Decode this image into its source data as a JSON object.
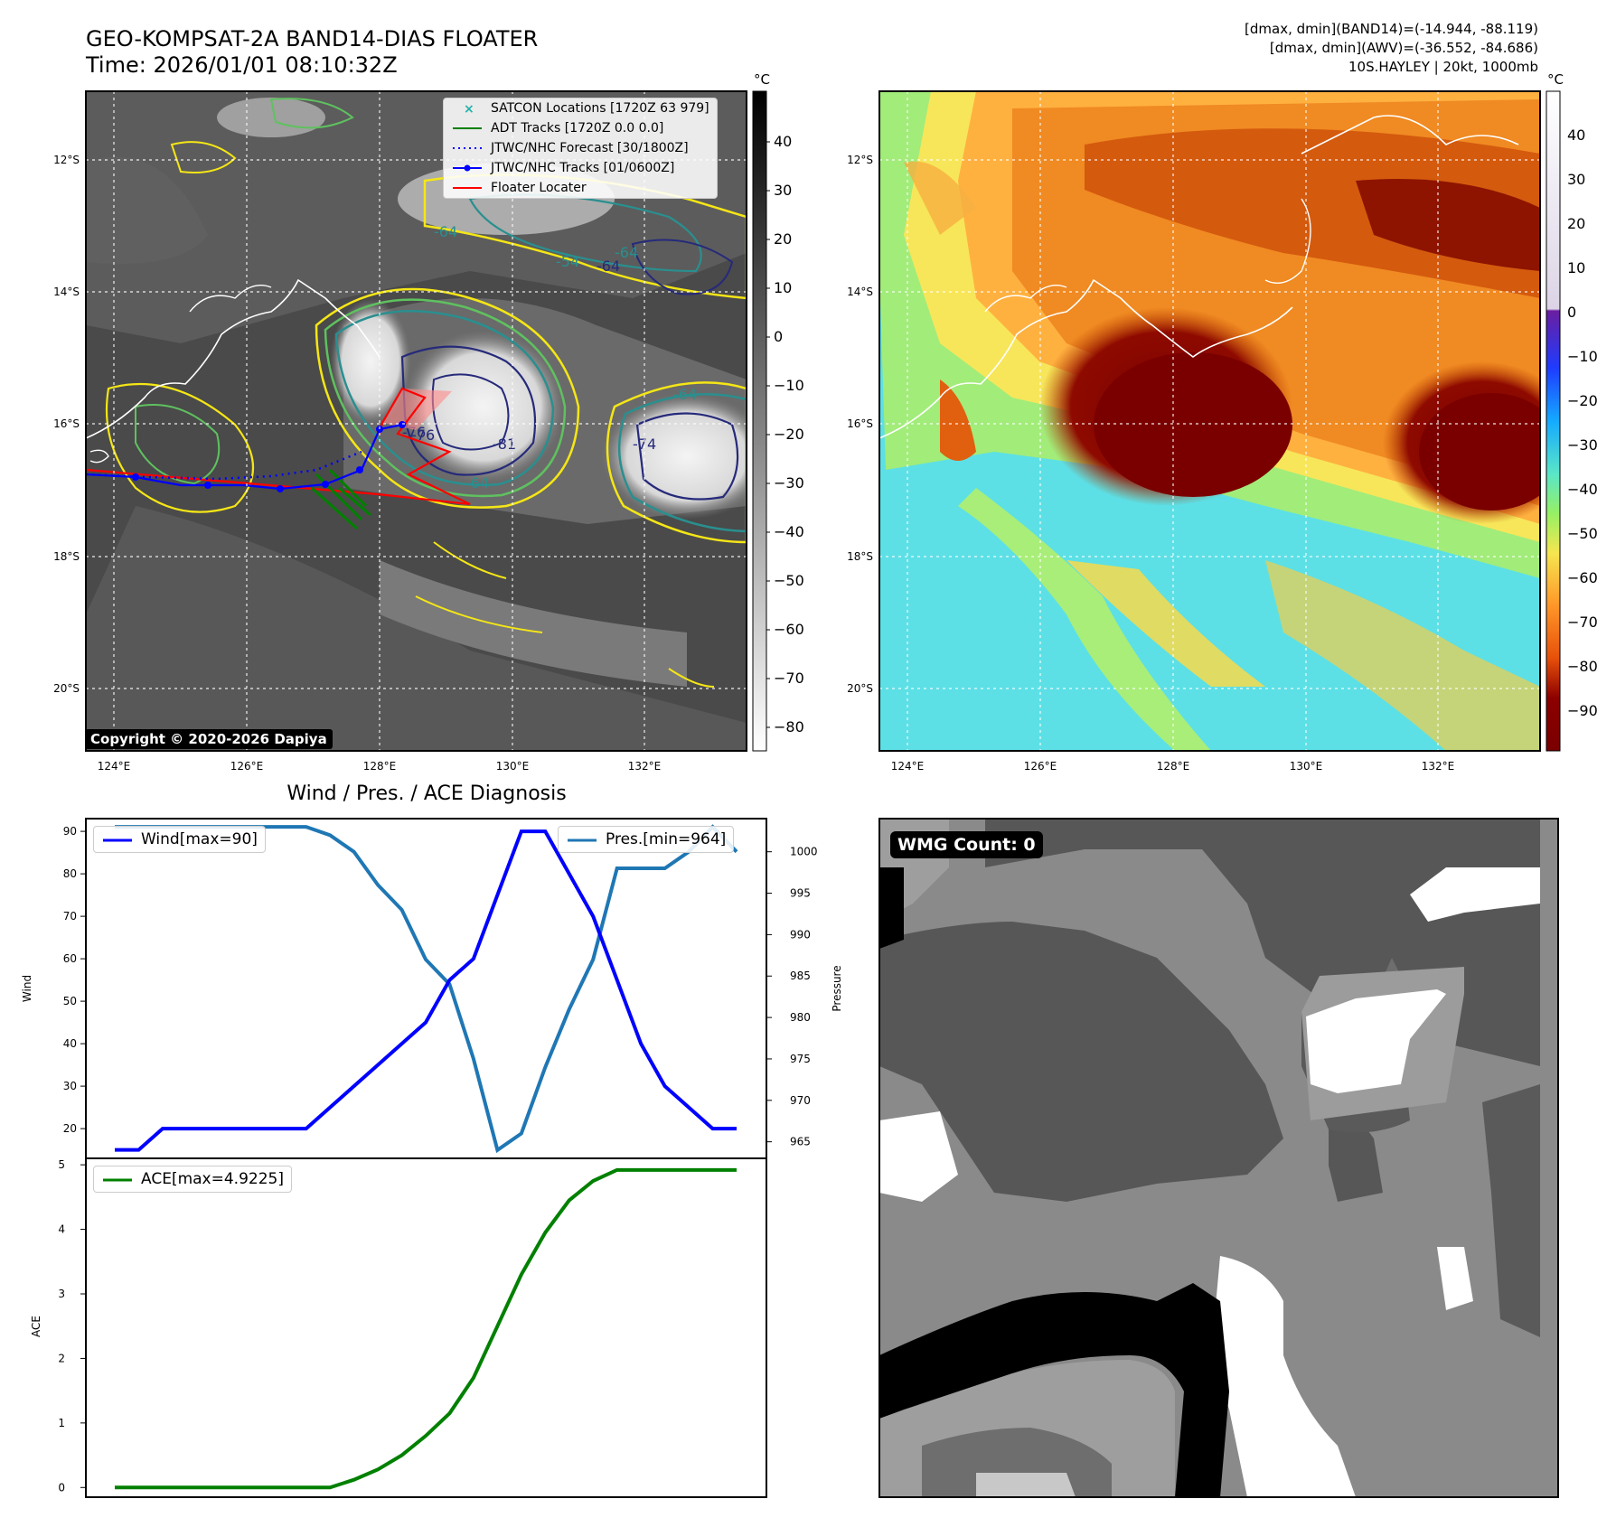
{
  "header": {
    "title_line1": "GEO-KOMPSAT-2A BAND14-DIAS FLOATER",
    "title_line2": "Time: 2026/01/01 08:10:32Z",
    "info_line1": "[dmax, dmin](BAND14)=(-14.944, -88.119)",
    "info_line2": "[dmax, dmin](AWV)=(-36.552, -84.686)",
    "info_line3": "10S.HAYLEY | 20kt, 1000mb"
  },
  "map": {
    "lat_labels": [
      "12°S",
      "14°S",
      "16°S",
      "18°S",
      "20°S"
    ],
    "lon_labels": [
      "124°E",
      "126°E",
      "128°E",
      "130°E",
      "132°E"
    ],
    "copyright": "Copyright © 2020-2026 Dapiya",
    "legend": [
      {
        "label": "SATCON Locations [1720Z 63 979]",
        "color": "#20b2aa",
        "style": "x"
      },
      {
        "label": "ADT Tracks [1720Z 0.0 0.0]",
        "color": "#008000",
        "style": "solid"
      },
      {
        "label": "JTWC/NHC Forecast [30/1800Z]",
        "color": "#0000ff",
        "style": "dotted"
      },
      {
        "label": "JTWC/NHC Tracks [01/0600Z]",
        "color": "#0000ff",
        "style": "solid-dot"
      },
      {
        "label": "Floater Locater",
        "color": "#ff0000",
        "style": "solid"
      }
    ],
    "contour_labels": [
      "-54",
      "-64",
      "-64",
      "-74",
      "-64",
      "-81",
      "-76",
      "-64",
      "-64",
      "-76"
    ],
    "colorbar1_unit": "°C",
    "colorbar1_ticks": [
      "40",
      "30",
      "20",
      "10",
      "0",
      "−10",
      "−20",
      "−30",
      "−40",
      "−50",
      "−60",
      "−70",
      "−80"
    ],
    "colorbar2_unit": "°C",
    "colorbar2_ticks": [
      "40",
      "30",
      "20",
      "10",
      "0",
      "−10",
      "−20",
      "−30",
      "−40",
      "−50",
      "−60",
      "−70",
      "−80",
      "−90"
    ],
    "colors": {
      "contour_yellow": "#f5e616",
      "contour_green": "#5fc15f",
      "contour_teal": "#2a8f8f",
      "contour_navy": "#262a7a",
      "coast": "#ffffff"
    }
  },
  "diagnosis_title": "Wind / Pres. / ACE Diagnosis",
  "chart_data": [
    {
      "type": "line",
      "title": "Wind / Pres. / ACE Diagnosis",
      "x": [
        0,
        1,
        2,
        3,
        4,
        5,
        6,
        7,
        8,
        9,
        10,
        11,
        12,
        13,
        14,
        15,
        16,
        17,
        18,
        19,
        20,
        21,
        22,
        23,
        24,
        25,
        26
      ],
      "series": [
        {
          "name": "Wind[max=90]",
          "axis": "left",
          "color": "#0000ff",
          "values": [
            15,
            15,
            20,
            20,
            20,
            20,
            20,
            20,
            20,
            25,
            30,
            35,
            40,
            45,
            55,
            60,
            75,
            90,
            90,
            80,
            70,
            55,
            40,
            30,
            25,
            20,
            20
          ]
        },
        {
          "name": "Pres.[min=964]",
          "axis": "right",
          "color": "#1f77b4",
          "values": [
            1003,
            1003,
            1003,
            1003,
            1003,
            1003,
            1003,
            1003,
            1003,
            1002,
            1000,
            996,
            993,
            987,
            984,
            975,
            964,
            966,
            974,
            981,
            987,
            998,
            998,
            998,
            1000,
            1003,
            1000
          ]
        }
      ],
      "ylabel": "Wind",
      "ylabel_right": "Pressure",
      "ylim": [
        13,
        93
      ],
      "ylim_right": [
        963,
        1004
      ],
      "yticks": [
        20,
        30,
        40,
        50,
        60,
        70,
        80,
        90
      ],
      "yticks_right": [
        965,
        970,
        975,
        980,
        985,
        990,
        995,
        1000
      ]
    },
    {
      "type": "line",
      "x": [
        0,
        1,
        2,
        3,
        4,
        5,
        6,
        7,
        8,
        9,
        10,
        11,
        12,
        13,
        14,
        15,
        16,
        17,
        18,
        19,
        20,
        21,
        22,
        23,
        24,
        25,
        26
      ],
      "series": [
        {
          "name": "ACE[max=4.9225]",
          "color": "#008000",
          "values": [
            0,
            0,
            0,
            0,
            0,
            0,
            0,
            0,
            0,
            0,
            0.12,
            0.28,
            0.5,
            0.8,
            1.15,
            1.7,
            2.5,
            3.3,
            3.95,
            4.45,
            4.75,
            4.92,
            4.92,
            4.92,
            4.92,
            4.92,
            4.92
          ]
        }
      ],
      "ylabel": "ACE",
      "ylim": [
        -0.15,
        5.1
      ],
      "yticks": [
        0,
        1,
        2,
        3,
        4,
        5
      ]
    }
  ],
  "wmg": {
    "label": "WMG Count: 0"
  }
}
